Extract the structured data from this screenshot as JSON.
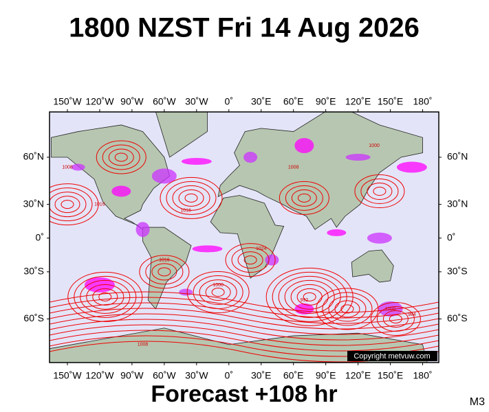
{
  "title": "1800 NZST Fri 14 Aug 2026",
  "map": {
    "lon_range": [
      -166.6,
      195
    ],
    "lat_range": [
      -75,
      75.4
    ],
    "lon_ticks": [
      {
        "value": -150,
        "label": "150˚W"
      },
      {
        "value": -120,
        "label": "120˚W"
      },
      {
        "value": -90,
        "label": "90˚W"
      },
      {
        "value": -60,
        "label": "60˚W"
      },
      {
        "value": -30,
        "label": "30˚W"
      },
      {
        "value": 0,
        "label": "0˚"
      },
      {
        "value": 30,
        "label": "30˚E"
      },
      {
        "value": 60,
        "label": "60˚E"
      },
      {
        "value": 90,
        "label": "90˚E"
      },
      {
        "value": 120,
        "label": "120˚E"
      },
      {
        "value": 150,
        "label": "150˚E"
      },
      {
        "value": 180,
        "label": "180˚"
      }
    ],
    "lat_ticks": [
      {
        "value": 60,
        "label": "60˚N"
      },
      {
        "value": 30,
        "label": "30˚N"
      },
      {
        "value": 0,
        "label": "0˚"
      },
      {
        "value": -30,
        "label": "30˚S"
      },
      {
        "value": -60,
        "label": "60˚S"
      }
    ],
    "isobar_labels": [
      "1008",
      "1016",
      "1016",
      "1024",
      "1000",
      "1016",
      "1008",
      "992",
      "1000",
      "984",
      "1008",
      "1000"
    ],
    "copyright": "Copyright metvuw.com"
  },
  "footer": "Forecast +108 hr",
  "corner_label": "M3"
}
